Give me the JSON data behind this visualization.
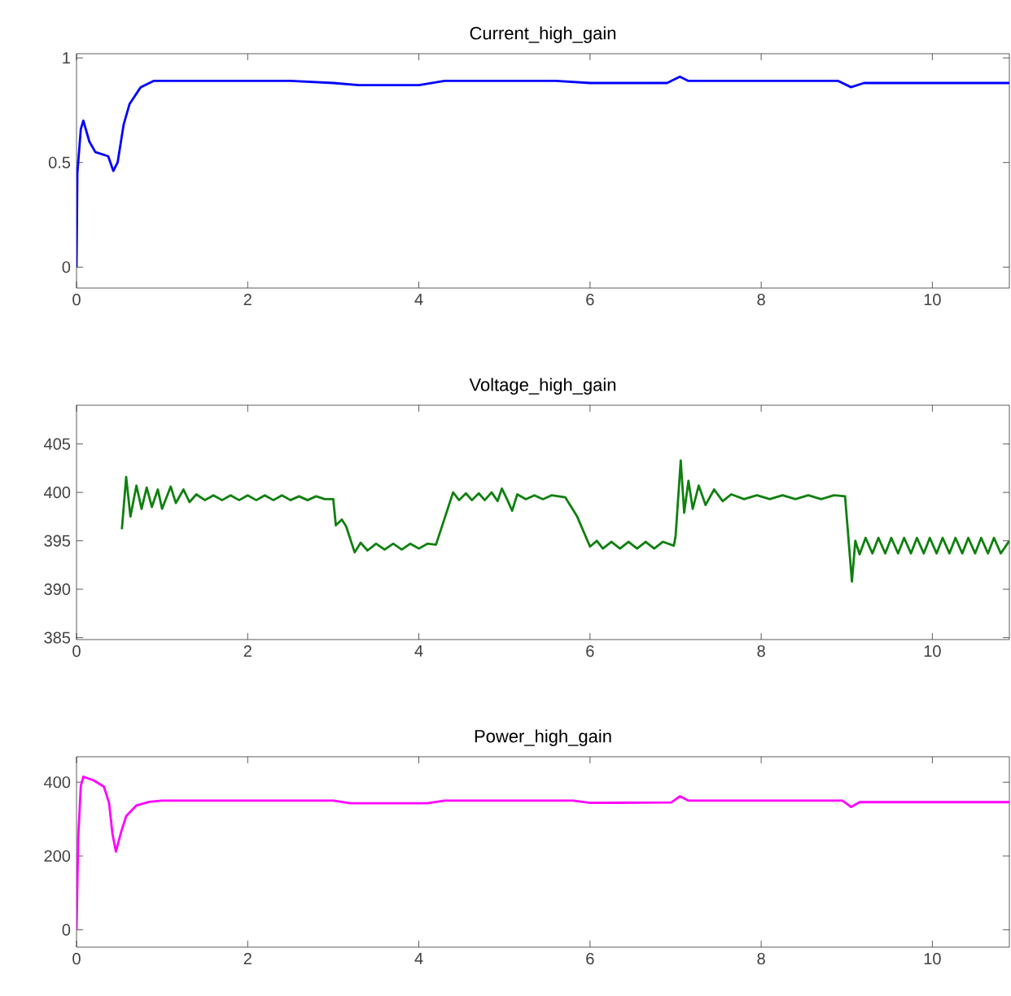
{
  "chart_data": [
    {
      "type": "line",
      "title": "Current_high_gain",
      "color": "#0000ff",
      "xlim": [
        0,
        10.9
      ],
      "ylim": [
        -0.1,
        1.02
      ],
      "xticks": [
        0,
        2,
        4,
        6,
        8,
        10
      ],
      "yticks": [
        0,
        0.5,
        1
      ],
      "x": [
        0,
        0.01,
        0.05,
        0.08,
        0.15,
        0.22,
        0.37,
        0.43,
        0.48,
        0.55,
        0.62,
        0.75,
        0.9,
        1.5,
        2.5,
        3,
        3.3,
        4,
        4.3,
        5,
        5.6,
        6,
        6.9,
        7.05,
        7.15,
        8.9,
        9.05,
        9.2,
        10.9
      ],
      "values": [
        0,
        0.45,
        0.66,
        0.7,
        0.6,
        0.55,
        0.53,
        0.46,
        0.5,
        0.68,
        0.78,
        0.86,
        0.89,
        0.89,
        0.89,
        0.88,
        0.87,
        0.87,
        0.89,
        0.89,
        0.89,
        0.88,
        0.88,
        0.91,
        0.89,
        0.89,
        0.86,
        0.88,
        0.88
      ]
    },
    {
      "type": "line",
      "title": "Voltage_high_gain",
      "color": "#0f800f",
      "xlim": [
        0,
        10.9
      ],
      "ylim": [
        384.8,
        409
      ],
      "xticks": [
        0,
        2,
        4,
        6,
        8,
        10
      ],
      "yticks": [
        385,
        390,
        395,
        400,
        405
      ],
      "x": [
        0.53,
        0.58,
        0.63,
        0.7,
        0.76,
        0.82,
        0.88,
        0.95,
        1.0,
        1.1,
        1.16,
        1.25,
        1.32,
        1.4,
        1.5,
        1.6,
        1.7,
        1.8,
        1.9,
        2.0,
        2.1,
        2.2,
        2.3,
        2.4,
        2.5,
        2.6,
        2.7,
        2.8,
        2.9,
        3.0,
        3.03,
        3.1,
        3.15,
        3.25,
        3.32,
        3.4,
        3.5,
        3.6,
        3.7,
        3.8,
        3.9,
        4.0,
        4.1,
        4.2,
        4.4,
        4.47,
        4.55,
        4.62,
        4.7,
        4.77,
        4.85,
        4.92,
        4.97,
        5.03,
        5.09,
        5.15,
        5.25,
        5.35,
        5.45,
        5.55,
        5.71,
        5.85,
        6.0,
        6.08,
        6.15,
        6.25,
        6.35,
        6.45,
        6.55,
        6.65,
        6.75,
        6.85,
        6.98,
        7.0,
        7.06,
        7.1,
        7.15,
        7.2,
        7.27,
        7.35,
        7.45,
        7.55,
        7.65,
        7.8,
        7.95,
        8.1,
        8.25,
        8.4,
        8.55,
        8.7,
        8.85,
        8.98,
        9.06,
        9.1,
        9.15,
        9.22,
        9.3,
        9.37,
        9.45,
        9.52,
        9.6,
        9.67,
        9.75,
        9.82,
        9.9,
        9.97,
        10.05,
        10.12,
        10.2,
        10.27,
        10.35,
        10.42,
        10.5,
        10.57,
        10.65,
        10.72,
        10.8,
        10.9
      ],
      "values": [
        396.2,
        401.6,
        397.5,
        400.7,
        398.3,
        400.5,
        398.5,
        400.3,
        398.3,
        400.6,
        398.9,
        400.3,
        399.0,
        399.8,
        399.2,
        399.7,
        399.2,
        399.7,
        399.2,
        399.7,
        399.2,
        399.7,
        399.2,
        399.7,
        399.2,
        399.6,
        399.2,
        399.6,
        399.3,
        399.3,
        396.6,
        397.2,
        396.5,
        393.8,
        394.8,
        394.0,
        394.7,
        394.1,
        394.7,
        394.1,
        394.7,
        394.2,
        394.7,
        394.6,
        400.0,
        399.2,
        399.9,
        399.2,
        399.9,
        399.2,
        400.0,
        399.1,
        400.4,
        399.3,
        398.1,
        399.8,
        399.3,
        399.7,
        399.3,
        399.7,
        399.5,
        397.5,
        394.4,
        395.0,
        394.2,
        394.9,
        394.2,
        394.9,
        394.2,
        394.9,
        394.2,
        394.9,
        394.5,
        395.5,
        403.3,
        397.9,
        401.2,
        398.3,
        400.7,
        398.7,
        400.3,
        399.1,
        399.8,
        399.3,
        399.7,
        399.3,
        399.7,
        399.3,
        399.7,
        399.3,
        399.7,
        399.6,
        390.8,
        395.0,
        393.6,
        395.3,
        393.7,
        395.3,
        393.7,
        395.3,
        393.7,
        395.3,
        393.7,
        395.3,
        393.7,
        395.3,
        393.7,
        395.3,
        393.7,
        395.3,
        393.7,
        395.3,
        393.7,
        395.3,
        393.7,
        395.3,
        393.7,
        395.0
      ]
    },
    {
      "type": "line",
      "title": "Power_high_gain",
      "color": "#ff00ff",
      "xlim": [
        0,
        10.9
      ],
      "ylim": [
        -47,
        469
      ],
      "xticks": [
        0,
        2,
        4,
        6,
        8,
        10
      ],
      "yticks": [
        0,
        200,
        400
      ],
      "x": [
        0,
        0.02,
        0.05,
        0.08,
        0.2,
        0.32,
        0.38,
        0.42,
        0.46,
        0.52,
        0.58,
        0.7,
        0.85,
        1.0,
        2,
        3,
        3.2,
        4.1,
        4.3,
        5.8,
        6.0,
        6.95,
        7.05,
        7.15,
        8.95,
        9.05,
        9.15,
        10.9
      ],
      "values": [
        0,
        250,
        390,
        415,
        405,
        388,
        344,
        260,
        212,
        264,
        308,
        337,
        347,
        350,
        350,
        350,
        343,
        343,
        350,
        350,
        344,
        345,
        362,
        350,
        350,
        333,
        346,
        346
      ]
    }
  ]
}
